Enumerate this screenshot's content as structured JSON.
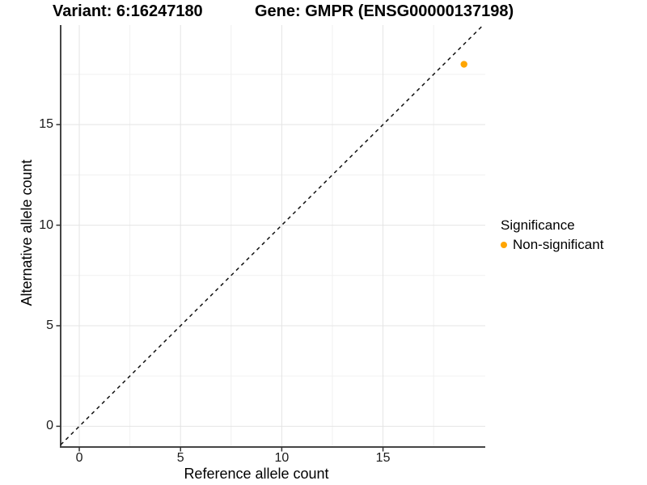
{
  "titles": {
    "variant": "Variant: 6:16247180",
    "gene": "Gene: GMPR (ENSG00000137198)"
  },
  "axes": {
    "x": {
      "label": "Reference allele count",
      "ticks": [
        "0",
        "5",
        "10",
        "15"
      ]
    },
    "y": {
      "label": "Alternative allele count",
      "ticks": [
        "0",
        "5",
        "10",
        "15"
      ]
    }
  },
  "legend": {
    "title": "Significance",
    "items": [
      {
        "label": "Non-significant",
        "color": "#FFA500"
      }
    ]
  },
  "chart_data": {
    "type": "scatter",
    "title_left": "Variant: 6:16247180",
    "title_right": "Gene: GMPR (ENSG00000137198)",
    "xlabel": "Reference allele count",
    "ylabel": "Alternative allele count",
    "xlim": [
      -0.92,
      20.05
    ],
    "ylim": [
      -1.03,
      19.95
    ],
    "x_major_ticks": [
      0,
      5,
      10,
      15
    ],
    "y_major_ticks": [
      0,
      5,
      10,
      15
    ],
    "x_minor_gridlines": [
      2.5,
      7.5,
      12.5,
      17.5
    ],
    "y_minor_gridlines": [
      2.5,
      7.5,
      12.5,
      17.5
    ],
    "grid": "major+minor",
    "legend_position": "right",
    "series": [
      {
        "name": "Non-significant",
        "color": "#FFA500",
        "marker": "circle",
        "points": [
          {
            "x": 19,
            "y": 18
          }
        ]
      }
    ],
    "reference_line": {
      "kind": "identity y=x",
      "slope": 1,
      "intercept": 0,
      "style": "dashed",
      "color": "#111111"
    },
    "style": {
      "grid_major_color": "#E4E4E4",
      "grid_minor_color": "#F0F0F0",
      "axis_line_color": "#454545",
      "tick_color": "#333333",
      "background": "#FFFFFF"
    }
  }
}
